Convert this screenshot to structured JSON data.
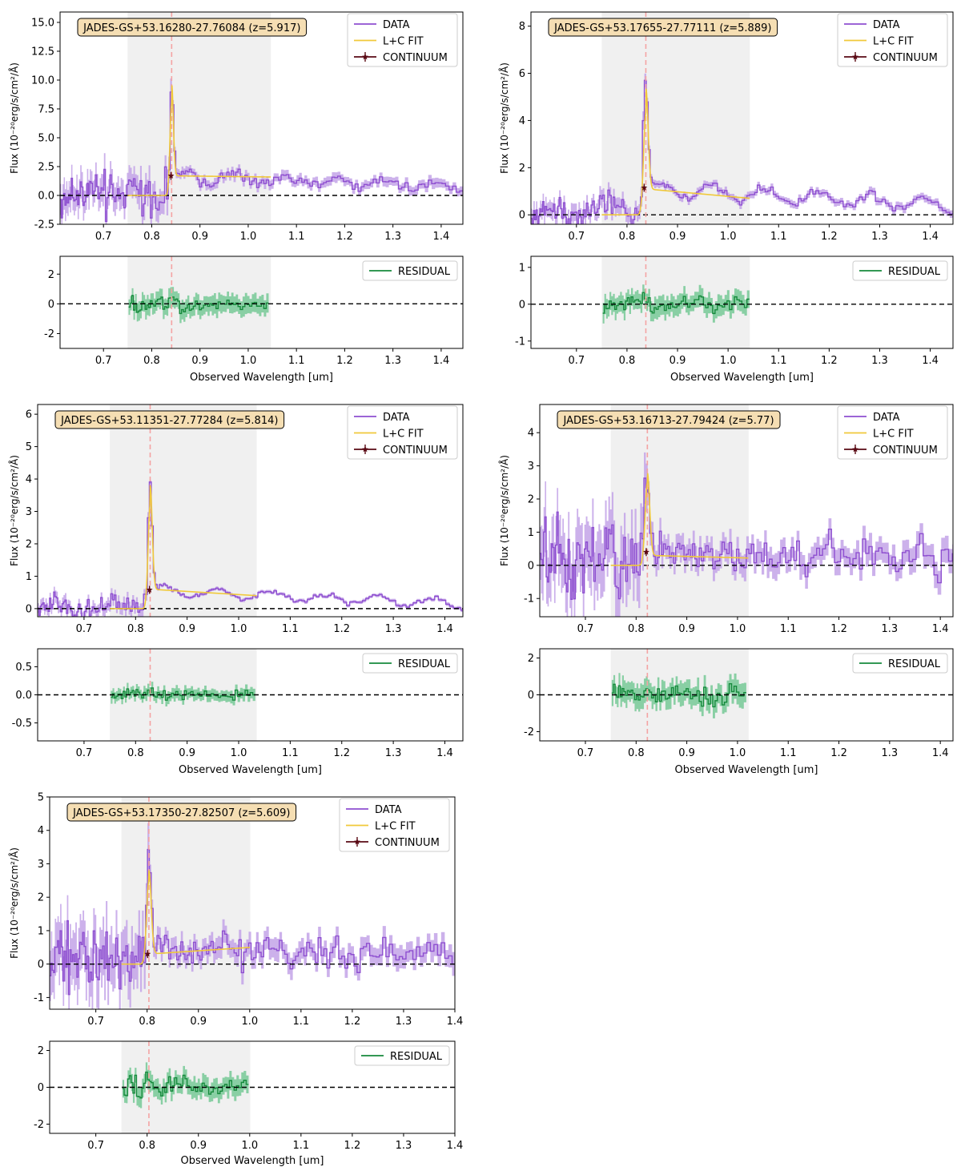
{
  "figure": {
    "ylabel_main": "Flux (10⁻²⁰erg/s/cm²/Å)",
    "xlabel": "Observed Wavelength [um]",
    "legend_main": [
      "DATA",
      "L+C FIT",
      "CONTINUUM"
    ],
    "legend_residual": "RESIDUAL",
    "colors": {
      "data": "#8e4fd0",
      "data_band": "#c3a3e8",
      "fit": "#f0c93a",
      "continuum": "#5a0a14",
      "residual": "#168a3c",
      "residual_band": "#77c996",
      "fit_region": "#f0f0f0",
      "line_marker": "#f4a3a3"
    }
  },
  "chart_data": [
    {
      "type": "line",
      "title": "JADES-GS+53.16280-27.76084 (z=5.917)",
      "z": 5.917,
      "line_center_um": 0.8413,
      "fit_region_um": [
        0.75,
        1.047
      ],
      "xlim": [
        0.61,
        1.445
      ],
      "xticks": [
        0.7,
        0.8,
        0.9,
        1.0,
        1.1,
        1.2,
        1.3,
        1.4
      ],
      "ylim": [
        -2.5,
        15.9
      ],
      "yticks": [
        -2.5,
        0.0,
        2.5,
        5.0,
        7.5,
        10.0,
        12.5,
        15.0
      ],
      "residual_ylim": [
        -3.0,
        3.2
      ],
      "residual_yticks": [
        -2,
        0,
        2
      ],
      "continuum_point": [
        0.84,
        1.7
      ],
      "line_peak_flux": 8.0,
      "line_width_um": 0.0035,
      "continuum_level": 1.7,
      "continuum_end_level": 1.6,
      "data_continuum": [
        0.2,
        1.6,
        0.8
      ],
      "scatter_short": 1.3,
      "scatter_long": 0.35,
      "band_short": 1.2,
      "band_long": 0.4,
      "residual_scatter": 0.5,
      "residual_band": 0.6
    },
    {
      "type": "line",
      "title": "JADES-GS+53.17655-27.77111 (z=5.889)",
      "z": 5.889,
      "line_center_um": 0.8373,
      "fit_region_um": [
        0.75,
        1.043
      ],
      "xlim": [
        0.61,
        1.445
      ],
      "xticks": [
        0.7,
        0.8,
        0.9,
        1.0,
        1.1,
        1.2,
        1.3,
        1.4
      ],
      "ylim": [
        -0.4,
        8.6
      ],
      "yticks": [
        0,
        2,
        4,
        6,
        8
      ],
      "residual_ylim": [
        -1.2,
        1.3
      ],
      "residual_yticks": [
        -1,
        0,
        1
      ],
      "continuum_point": [
        0.834,
        1.15
      ],
      "line_peak_flux": 4.3,
      "line_width_um": 0.0045,
      "continuum_level": 1.1,
      "continuum_end_level": 0.7,
      "data_continuum": [
        0.3,
        1.1,
        0.4
      ],
      "scatter_short": 0.45,
      "scatter_long": 0.12,
      "band_short": 0.35,
      "band_long": 0.15,
      "residual_scatter": 0.22,
      "residual_band": 0.25
    },
    {
      "type": "line",
      "title": "JADES-GS+53.11351-27.77284 (z=5.814)",
      "z": 5.814,
      "line_center_um": 0.8283,
      "fit_region_um": [
        0.75,
        1.035
      ],
      "xlim": [
        0.61,
        1.435
      ],
      "xticks": [
        0.7,
        0.8,
        0.9,
        1.0,
        1.1,
        1.2,
        1.3,
        1.4
      ],
      "ylim": [
        -0.25,
        6.3
      ],
      "yticks": [
        0,
        1,
        2,
        3,
        4,
        5,
        6
      ],
      "residual_ylim": [
        -0.82,
        0.82
      ],
      "residual_yticks": [
        -0.5,
        0.0,
        0.5
      ],
      "continuum_point": [
        0.827,
        0.58
      ],
      "line_peak_flux": 3.2,
      "line_width_um": 0.004,
      "continuum_level": 0.6,
      "continuum_end_level": 0.4,
      "data_continuum": [
        0.1,
        0.55,
        0.15
      ],
      "scatter_short": 0.25,
      "scatter_long": 0.05,
      "band_short": 0.18,
      "band_long": 0.05,
      "residual_scatter": 0.1,
      "residual_band": 0.1
    },
    {
      "type": "line",
      "title": "JADES-GS+53.16713-27.79424 (z=5.77)",
      "z": 5.77,
      "line_center_um": 0.8222,
      "fit_region_um": [
        0.75,
        1.022
      ],
      "xlim": [
        0.61,
        1.425
      ],
      "xticks": [
        0.7,
        0.8,
        0.9,
        1.0,
        1.1,
        1.2,
        1.3,
        1.4
      ],
      "ylim": [
        -1.55,
        4.85
      ],
      "yticks": [
        -1,
        0,
        1,
        2,
        3,
        4
      ],
      "residual_ylim": [
        -2.5,
        2.5
      ],
      "residual_yticks": [
        -2,
        0,
        2
      ],
      "continuum_point": [
        0.82,
        0.4
      ],
      "line_peak_flux": 2.5,
      "line_width_um": 0.0045,
      "continuum_level": 0.3,
      "continuum_end_level": 0.22,
      "data_continuum": [
        0.25,
        0.35,
        0.2
      ],
      "scatter_short": 0.8,
      "scatter_long": 0.45,
      "band_short": 0.9,
      "band_long": 0.35,
      "residual_scatter": 0.55,
      "residual_band": 0.6
    },
    {
      "type": "line",
      "title": "JADES-GS+53.17350-27.82507 (z=5.609)",
      "z": 5.609,
      "line_center_um": 0.8035,
      "fit_region_um": [
        0.75,
        1.001
      ],
      "xlim": [
        0.61,
        1.4
      ],
      "xticks": [
        0.7,
        0.8,
        0.9,
        1.0,
        1.1,
        1.2,
        1.3,
        1.4
      ],
      "ylim": [
        -1.35,
        5.0
      ],
      "yticks": [
        -1,
        0,
        1,
        2,
        3,
        4,
        5
      ],
      "residual_ylim": [
        -2.5,
        2.5
      ],
      "residual_yticks": [
        -2,
        0,
        2
      ],
      "continuum_point": [
        0.801,
        0.3
      ],
      "line_peak_flux": 2.5,
      "line_width_um": 0.0045,
      "continuum_level": 0.3,
      "continuum_end_level": 0.5,
      "data_continuum": [
        0.3,
        0.45,
        0.25
      ],
      "scatter_short": 0.75,
      "scatter_long": 0.35,
      "band_short": 0.8,
      "band_long": 0.3,
      "residual_scatter": 0.5,
      "residual_band": 0.5
    }
  ]
}
